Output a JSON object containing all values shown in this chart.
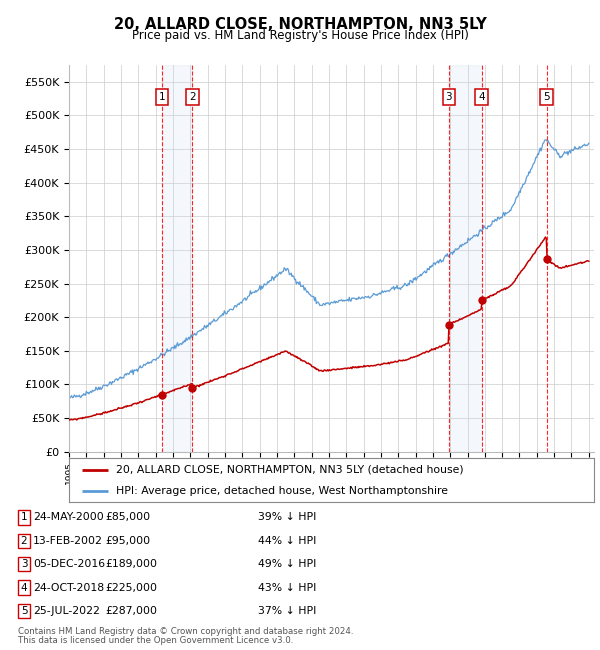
{
  "title": "20, ALLARD CLOSE, NORTHAMPTON, NN3 5LY",
  "subtitle": "Price paid vs. HM Land Registry's House Price Index (HPI)",
  "ylim": [
    0,
    575000
  ],
  "yticks": [
    0,
    50000,
    100000,
    150000,
    200000,
    250000,
    300000,
    350000,
    400000,
    450000,
    500000,
    550000
  ],
  "ytick_labels": [
    "£0",
    "£50K",
    "£100K",
    "£150K",
    "£200K",
    "£250K",
    "£300K",
    "£350K",
    "£400K",
    "£450K",
    "£500K",
    "£550K"
  ],
  "sales": [
    {
      "label": 1,
      "date": "24-MAY-2000",
      "year": 2000.38,
      "price": 85000,
      "pct": "39%"
    },
    {
      "label": 2,
      "date": "13-FEB-2002",
      "year": 2002.12,
      "price": 95000,
      "pct": "44%"
    },
    {
      "label": 3,
      "date": "05-DEC-2016",
      "year": 2016.92,
      "price": 189000,
      "pct": "49%"
    },
    {
      "label": 4,
      "date": "24-OCT-2018",
      "year": 2018.82,
      "price": 225000,
      "pct": "43%"
    },
    {
      "label": 5,
      "date": "25-JUL-2022",
      "year": 2022.57,
      "price": 287000,
      "pct": "37%"
    }
  ],
  "hpi_color": "#5b9bd5",
  "sale_color": "#c00000",
  "legend_label_sale": "20, ALLARD CLOSE, NORTHAMPTON, NN3 5LY (detached house)",
  "legend_label_hpi": "HPI: Average price, detached house, West Northamptonshire",
  "footnote1": "Contains HM Land Registry data © Crown copyright and database right 2024.",
  "footnote2": "This data is licensed under the Open Government Licence v3.0.",
  "hpi_seed": 42,
  "red_seed": 99
}
